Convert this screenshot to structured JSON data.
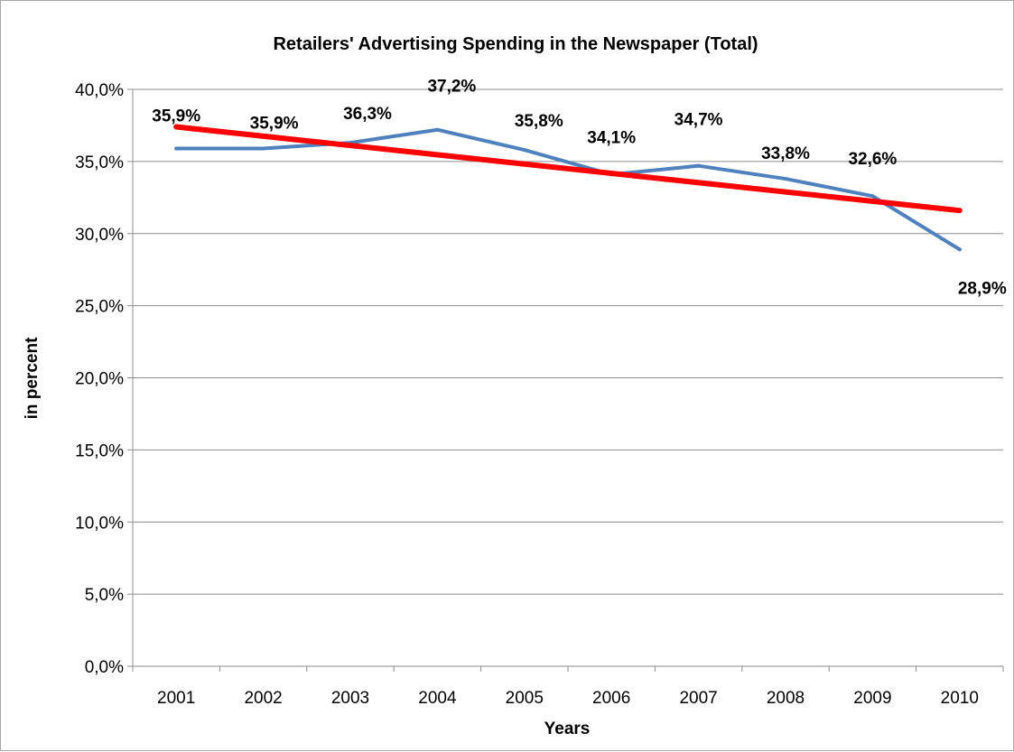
{
  "chart_data": {
    "type": "line",
    "title": "Retailers' Advertising Spending in the Newspaper (Total)",
    "xlabel": "Years",
    "ylabel": "in percent",
    "categories": [
      "2001",
      "2002",
      "2003",
      "2004",
      "2005",
      "2006",
      "2007",
      "2008",
      "2009",
      "2010"
    ],
    "ylim": [
      0,
      40
    ],
    "yticks": [
      0,
      5,
      10,
      15,
      20,
      25,
      30,
      35,
      40
    ],
    "ytick_labels": [
      "0,0%",
      "5,0%",
      "10,0%",
      "15,0%",
      "20,0%",
      "25,0%",
      "30,0%",
      "35,0%",
      "40,0%"
    ],
    "grid": true,
    "legend": "none",
    "series": [
      {
        "values": [
          35.9,
          35.9,
          36.3,
          37.2,
          35.8,
          34.1,
          34.7,
          33.8,
          32.6,
          28.9
        ],
        "labels": [
          "35,9%",
          "35,9%",
          "36,3%",
          "37,2%",
          "35,8%",
          "34,1%",
          "34,7%",
          "33,8%",
          "32,6%",
          "28,9%"
        ],
        "color": "#4f81bd"
      }
    ],
    "trendline": {
      "type": "linear",
      "color": "#ff0000",
      "start_value": 37.4,
      "end_value": 31.6
    }
  }
}
